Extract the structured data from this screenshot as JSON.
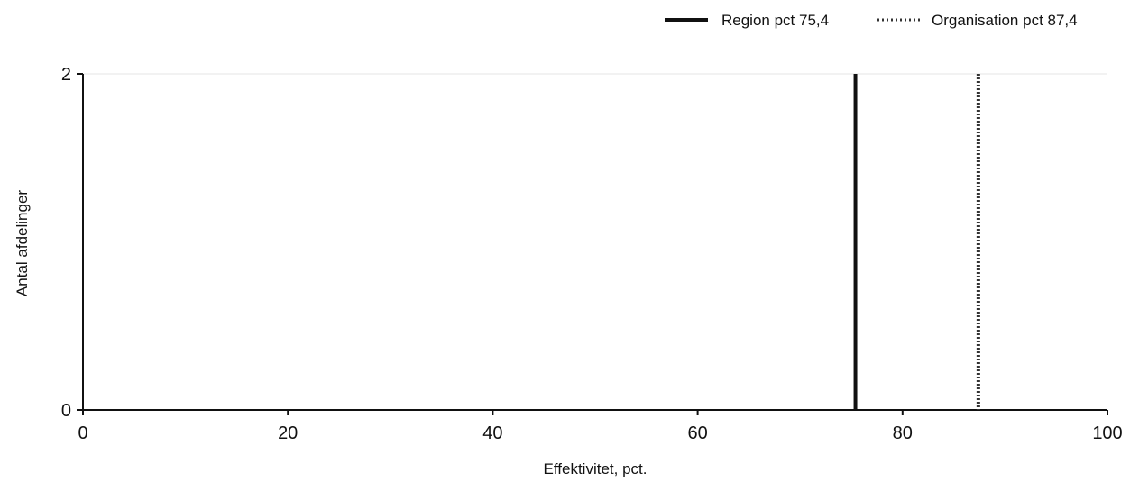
{
  "chart_data": {
    "type": "line",
    "title": "",
    "xlabel": "Effektivitet, pct.",
    "ylabel": "Antal afdelinger",
    "xlim": [
      0,
      100
    ],
    "ylim": [
      0,
      2
    ],
    "x_ticks": [
      0,
      20,
      40,
      60,
      80,
      100
    ],
    "y_ticks": [
      0,
      2
    ],
    "grid": "horizontal line at top only",
    "legend_position": "top-right",
    "reference_lines": [
      {
        "name": "Region pct 75,4",
        "x": 75.4,
        "style": "solid",
        "color": "#111111"
      },
      {
        "name": "Organisation pct 87,4",
        "x": 87.4,
        "style": "dotted",
        "color": "#333333"
      }
    ]
  }
}
